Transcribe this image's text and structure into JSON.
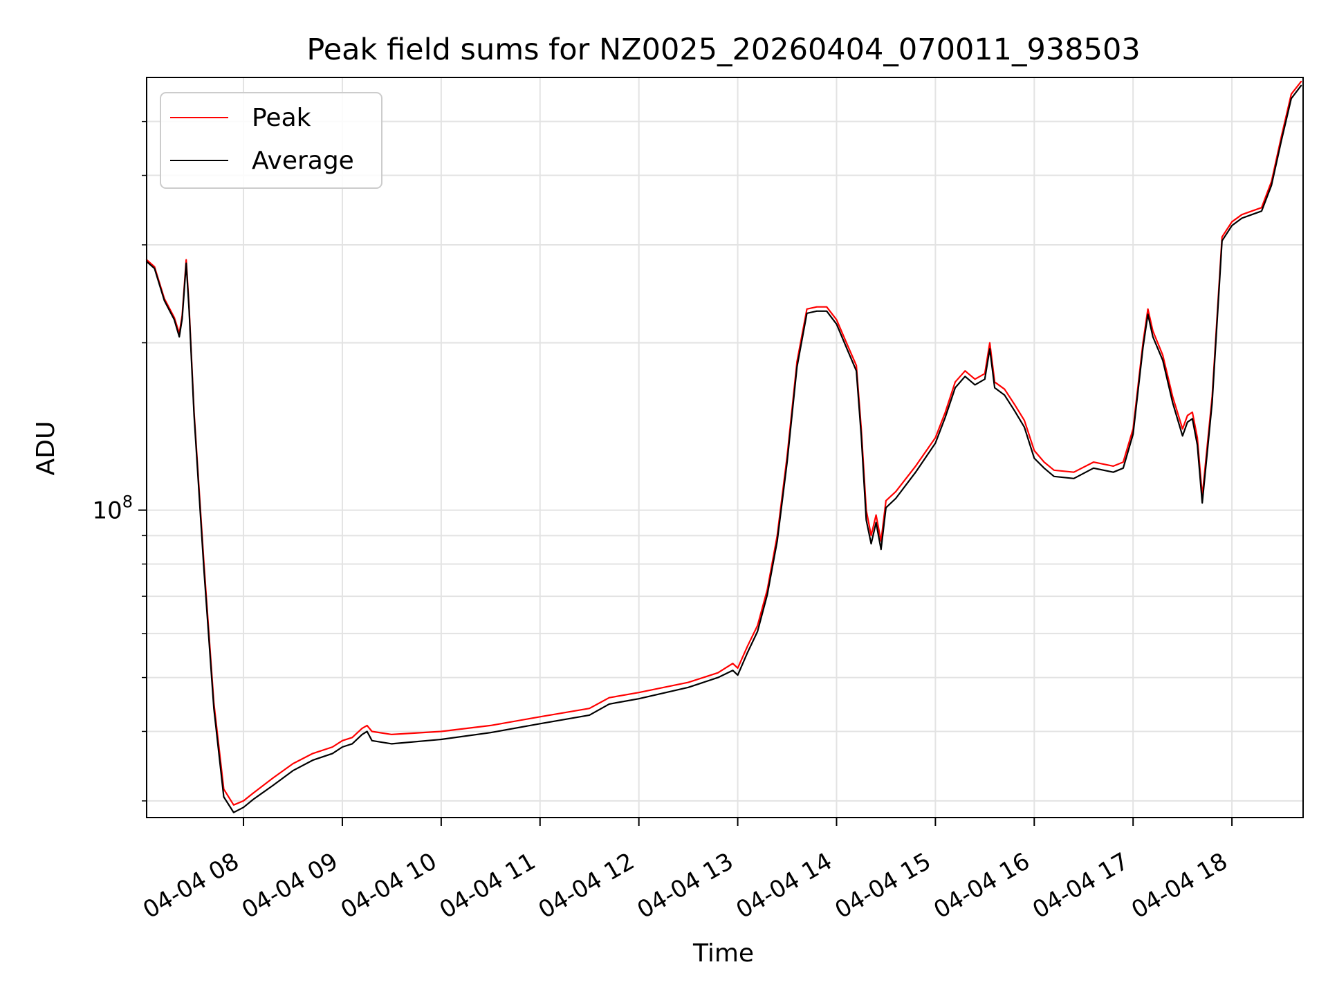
{
  "chart_data": {
    "type": "line",
    "title": "Peak field sums for NZ0025_20260404_070011_938503",
    "xlabel": "Time",
    "ylabel": "ADU",
    "yscale": "log",
    "xlim": [
      7.02,
      18.72
    ],
    "ylim": [
      28000000,
      600000000
    ],
    "x_ticks": [
      8,
      9,
      10,
      11,
      12,
      13,
      14,
      15,
      16,
      17,
      18
    ],
    "x_tick_labels": [
      "04-04 08",
      "04-04 09",
      "04-04 10",
      "04-04 11",
      "04-04 12",
      "04-04 13",
      "04-04 14",
      "04-04 15",
      "04-04 16",
      "04-04 17",
      "04-04 18"
    ],
    "y_major_ticks": [
      100000000
    ],
    "y_major_tick_labels": [
      {
        "base": "10",
        "exp": "8"
      }
    ],
    "y_minor_ticks": [
      30000000,
      40000000,
      50000000,
      60000000,
      70000000,
      80000000,
      90000000,
      200000000,
      300000000,
      400000000,
      500000000
    ],
    "grid": true,
    "legend_position": "top-left",
    "legend": [
      "Peak",
      "Average"
    ],
    "series": [
      {
        "name": "Peak",
        "color": "#ff0000",
        "x": [
          7.02,
          7.1,
          7.2,
          7.3,
          7.35,
          7.38,
          7.42,
          7.45,
          7.5,
          7.6,
          7.7,
          7.8,
          7.9,
          8.0,
          8.1,
          8.3,
          8.5,
          8.7,
          8.9,
          9.0,
          9.1,
          9.2,
          9.25,
          9.3,
          9.5,
          10.0,
          10.5,
          11.0,
          11.5,
          11.7,
          12.0,
          12.5,
          12.8,
          12.95,
          13.0,
          13.1,
          13.2,
          13.3,
          13.4,
          13.5,
          13.6,
          13.7,
          13.8,
          13.9,
          14.0,
          14.1,
          14.2,
          14.25,
          14.3,
          14.35,
          14.4,
          14.45,
          14.5,
          14.6,
          14.8,
          15.0,
          15.1,
          15.2,
          15.3,
          15.4,
          15.5,
          15.55,
          15.6,
          15.7,
          15.8,
          15.9,
          16.0,
          16.1,
          16.2,
          16.4,
          16.6,
          16.8,
          16.9,
          17.0,
          17.1,
          17.15,
          17.2,
          17.3,
          17.4,
          17.5,
          17.55,
          17.6,
          17.65,
          17.7,
          17.8,
          17.9,
          18.0,
          18.1,
          18.2,
          18.3,
          18.4,
          18.5,
          18.6,
          18.7
        ],
        "values": [
          282000000,
          274000000,
          240000000,
          222000000,
          208000000,
          224000000,
          282000000,
          232000000,
          150000000,
          80000000,
          45000000,
          31500000,
          29500000,
          30000000,
          31000000,
          33000000,
          35000000,
          36500000,
          37500000,
          38500000,
          39000000,
          40500000,
          41000000,
          40000000,
          39500000,
          40000000,
          41000000,
          42500000,
          44000000,
          46000000,
          47000000,
          49000000,
          51000000,
          53000000,
          52000000,
          57000000,
          62000000,
          72000000,
          90000000,
          125000000,
          185000000,
          230000000,
          232000000,
          232000000,
          220000000,
          200000000,
          182000000,
          140000000,
          100000000,
          90000000,
          98000000,
          88000000,
          104000000,
          108000000,
          120000000,
          135000000,
          150000000,
          170000000,
          178000000,
          172000000,
          176000000,
          200000000,
          170000000,
          165000000,
          155000000,
          145000000,
          128000000,
          122000000,
          118000000,
          117000000,
          122000000,
          120000000,
          122000000,
          140000000,
          200000000,
          230000000,
          210000000,
          190000000,
          160000000,
          140000000,
          148000000,
          150000000,
          135000000,
          106000000,
          160000000,
          310000000,
          330000000,
          340000000,
          345000000,
          350000000,
          390000000,
          470000000,
          560000000,
          590000000
        ]
      },
      {
        "name": "Average",
        "color": "#000000",
        "x": [
          7.02,
          7.1,
          7.2,
          7.3,
          7.35,
          7.38,
          7.42,
          7.45,
          7.5,
          7.6,
          7.7,
          7.8,
          7.9,
          8.0,
          8.1,
          8.3,
          8.5,
          8.7,
          8.9,
          9.0,
          9.1,
          9.2,
          9.25,
          9.3,
          9.5,
          10.0,
          10.5,
          11.0,
          11.5,
          11.7,
          12.0,
          12.5,
          12.8,
          12.95,
          13.0,
          13.1,
          13.2,
          13.3,
          13.4,
          13.5,
          13.6,
          13.7,
          13.8,
          13.9,
          14.0,
          14.1,
          14.2,
          14.25,
          14.3,
          14.35,
          14.4,
          14.45,
          14.5,
          14.6,
          14.8,
          15.0,
          15.1,
          15.2,
          15.3,
          15.4,
          15.5,
          15.55,
          15.6,
          15.7,
          15.8,
          15.9,
          16.0,
          16.1,
          16.2,
          16.4,
          16.6,
          16.8,
          16.9,
          17.0,
          17.1,
          17.15,
          17.2,
          17.3,
          17.4,
          17.5,
          17.55,
          17.6,
          17.65,
          17.7,
          17.8,
          17.9,
          18.0,
          18.1,
          18.2,
          18.3,
          18.4,
          18.5,
          18.6,
          18.7
        ],
        "values": [
          280000000,
          272000000,
          238000000,
          220000000,
          205000000,
          221000000,
          278000000,
          229000000,
          148000000,
          78000000,
          44000000,
          30500000,
          28600000,
          29200000,
          30200000,
          32000000,
          34000000,
          35500000,
          36500000,
          37500000,
          38000000,
          39500000,
          40000000,
          38500000,
          38000000,
          38700000,
          39800000,
          41300000,
          42800000,
          44800000,
          45800000,
          48000000,
          50000000,
          51500000,
          50500000,
          55500000,
          60500000,
          70500000,
          88000000,
          122000000,
          181000000,
          226000000,
          228000000,
          228000000,
          216000000,
          196000000,
          178000000,
          136000000,
          96000000,
          87000000,
          95000000,
          85000000,
          101000000,
          105000000,
          117000000,
          132000000,
          147000000,
          166000000,
          174000000,
          168000000,
          172000000,
          195000000,
          166000000,
          161000000,
          151000000,
          141000000,
          124000000,
          119000000,
          115000000,
          114000000,
          119000000,
          117000000,
          119000000,
          137000000,
          196000000,
          225000000,
          205000000,
          186000000,
          156000000,
          136000000,
          144000000,
          146000000,
          131000000,
          103000000,
          156000000,
          305000000,
          325000000,
          335000000,
          340000000,
          345000000,
          384000000,
          462000000,
          550000000,
          580000000
        ]
      }
    ]
  }
}
